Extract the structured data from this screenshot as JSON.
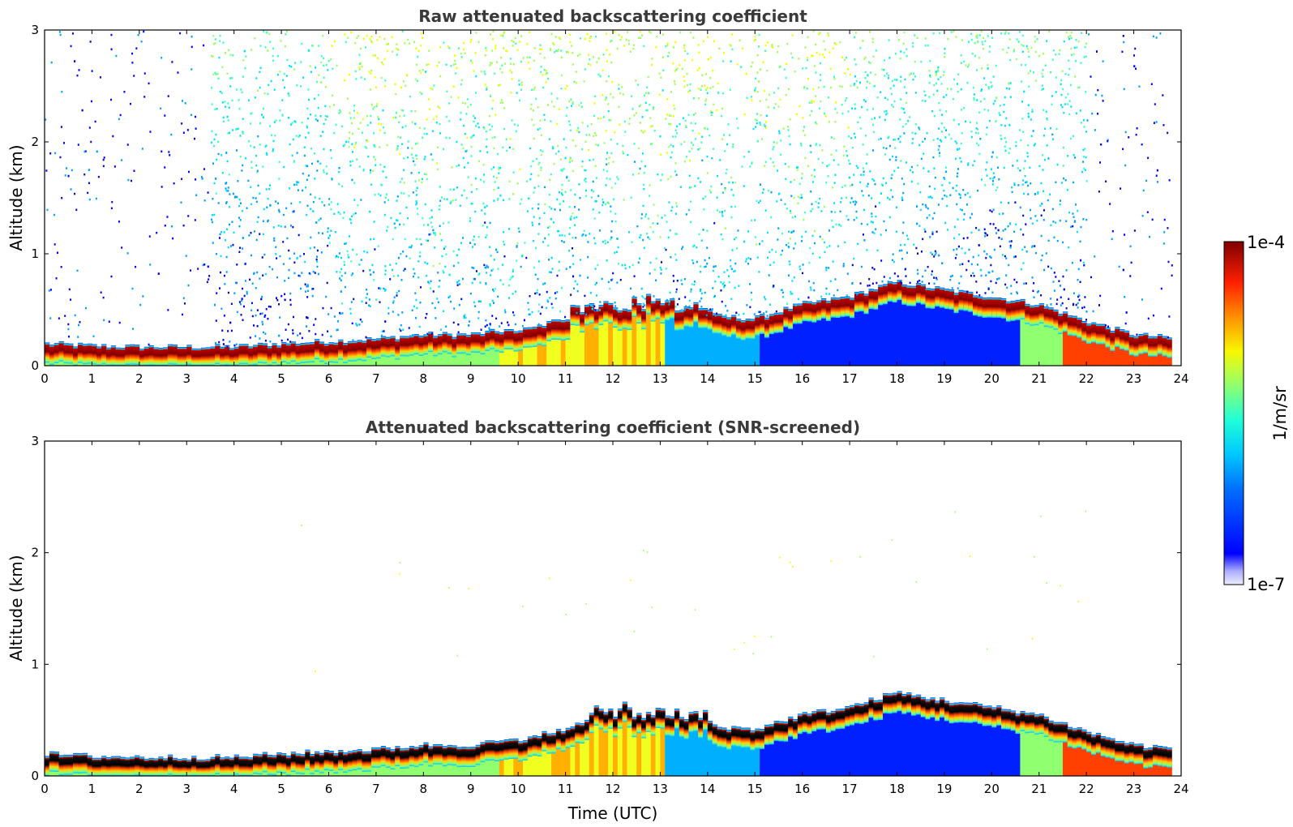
{
  "chart_data": [
    {
      "type": "heatmap",
      "title": "Raw attenuated backscattering coefficient",
      "xlabel": "",
      "ylabel": "Altitude (km)",
      "xlim": [
        0,
        24
      ],
      "ylim": [
        0,
        3
      ],
      "x_ticks": [
        "0",
        "1",
        "2",
        "3",
        "4",
        "5",
        "6",
        "7",
        "8",
        "9",
        "10",
        "11",
        "12",
        "13",
        "14",
        "15",
        "16",
        "17",
        "18",
        "19",
        "20",
        "21",
        "22",
        "23",
        "24"
      ],
      "y_ticks": [
        "0",
        "1",
        "2",
        "3"
      ],
      "color_scale": "log",
      "colormap": "jet",
      "boundary_layer_top": {
        "time": [
          0,
          1,
          2,
          3,
          4,
          5,
          6,
          7,
          8,
          9,
          10,
          11,
          12,
          13,
          14,
          15,
          16,
          17,
          18,
          19,
          20,
          21,
          22,
          23,
          23.8
        ],
        "altitude": [
          0.2,
          0.18,
          0.17,
          0.17,
          0.17,
          0.2,
          0.22,
          0.24,
          0.28,
          0.28,
          0.33,
          0.42,
          0.5,
          0.5,
          0.45,
          0.42,
          0.55,
          0.62,
          0.75,
          0.68,
          0.62,
          0.55,
          0.4,
          0.28,
          0.25
        ]
      },
      "notes_visible": "noise speckle above boundary layer 3.5–22 UTC"
    },
    {
      "type": "heatmap",
      "title": "Attenuated backscattering coefficient (SNR-screened)",
      "xlabel": "Time (UTC)",
      "ylabel": "Altitude (km)",
      "xlim": [
        0,
        24
      ],
      "ylim": [
        0,
        3
      ],
      "x_ticks": [
        "0",
        "1",
        "2",
        "3",
        "4",
        "5",
        "6",
        "7",
        "8",
        "9",
        "10",
        "11",
        "12",
        "13",
        "14",
        "15",
        "16",
        "17",
        "18",
        "19",
        "20",
        "21",
        "22",
        "23",
        "24"
      ],
      "y_ticks": [
        "0",
        "1",
        "2",
        "3"
      ],
      "color_scale": "log",
      "colormap": "jet",
      "boundary_layer_top": {
        "time": [
          0,
          1,
          2,
          3,
          4,
          5,
          6,
          7,
          8,
          9,
          10,
          11,
          12,
          13,
          14,
          15,
          16,
          17,
          18,
          19,
          20,
          21,
          22,
          23,
          23.8
        ],
        "altitude": [
          0.2,
          0.18,
          0.17,
          0.17,
          0.17,
          0.2,
          0.22,
          0.24,
          0.28,
          0.28,
          0.33,
          0.42,
          0.5,
          0.5,
          0.45,
          0.42,
          0.55,
          0.62,
          0.75,
          0.68,
          0.62,
          0.55,
          0.4,
          0.28,
          0.25
        ]
      }
    }
  ],
  "colorbar": {
    "label": "1/m/sr",
    "max_label": "1e-4",
    "min_label": "1e-7",
    "colors": [
      "#e8e8ff",
      "#b4b4ff",
      "#7878ff",
      "#0000ff",
      "#0050ff",
      "#00a0ff",
      "#00e0ff",
      "#40ffc0",
      "#a0ff60",
      "#f0ff00",
      "#ffc000",
      "#ff7000",
      "#ff2000",
      "#c00000",
      "#800000"
    ]
  }
}
